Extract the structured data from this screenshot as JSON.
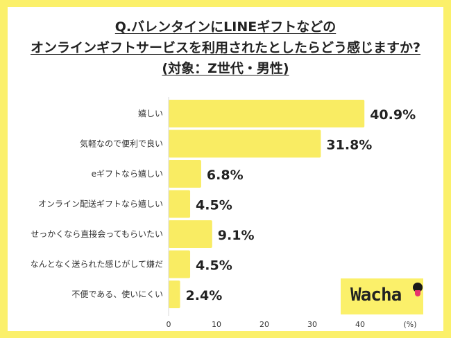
{
  "title": {
    "line1": "Q.バレンタインにLINEギフトなどの",
    "line2": "オンラインギフトサービスを利用されたとしたらどう感じますか?",
    "line3": "(対象：Z世代・男性)"
  },
  "logo": {
    "text": "Wacha"
  },
  "colors": {
    "background": "#fbf06a",
    "bar": "#f9ec63",
    "card": "#ffffff"
  },
  "chart_data": {
    "type": "bar",
    "orientation": "horizontal",
    "categories": [
      "嬉しい",
      "気軽なので便利で良い",
      "eギフトなら嬉しい",
      "オンライン配送ギフトなら嬉しい",
      "せっかくなら直接会ってもらいたい",
      "なんとなく送られた感じがして嫌だ",
      "不便である、使いにくい"
    ],
    "values": [
      40.9,
      31.8,
      6.8,
      4.5,
      9.1,
      4.5,
      2.4
    ],
    "value_labels": [
      "40.9%",
      "31.8%",
      "6.8%",
      "4.5%",
      "9.1%",
      "4.5%",
      "2.4%"
    ],
    "xlim": [
      0,
      50
    ],
    "xticks": [
      0,
      10,
      20,
      30,
      40
    ],
    "xlabel": "(%)",
    "grid": false
  }
}
